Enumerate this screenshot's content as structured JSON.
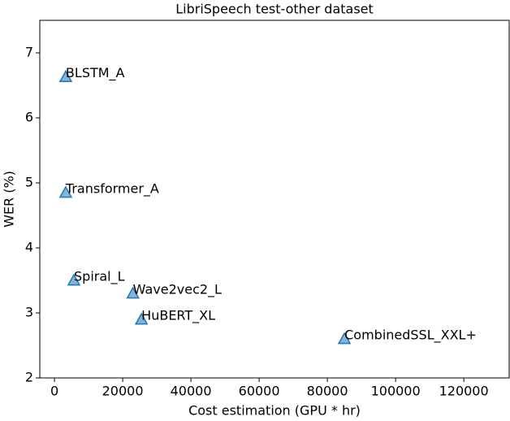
{
  "chart_data": {
    "type": "scatter",
    "title": "LibriSpeech test-other dataset",
    "xlabel": "Cost estimation (GPU * hr)",
    "ylabel": "WER (%)",
    "labels": [
      "BLSTM_A",
      "Transformer_A",
      "Spiral_L",
      "Wave2vec2_L",
      "HuBERT_XL",
      "CombinedSSL_XXL+"
    ],
    "x": [
      3300,
      3300,
      5700,
      23000,
      25500,
      85000
    ],
    "values": [
      6.63,
      4.85,
      3.5,
      3.3,
      2.9,
      2.6
    ],
    "color": "#1f77b4",
    "xlim": [
      -4300,
      133300
    ],
    "ylim": [
      2,
      7.5
    ],
    "xticks": [
      0,
      20000,
      40000,
      60000,
      80000,
      100000,
      120000
    ],
    "yticks": [
      2,
      3,
      4,
      5,
      6,
      7
    ],
    "grid": false
  }
}
